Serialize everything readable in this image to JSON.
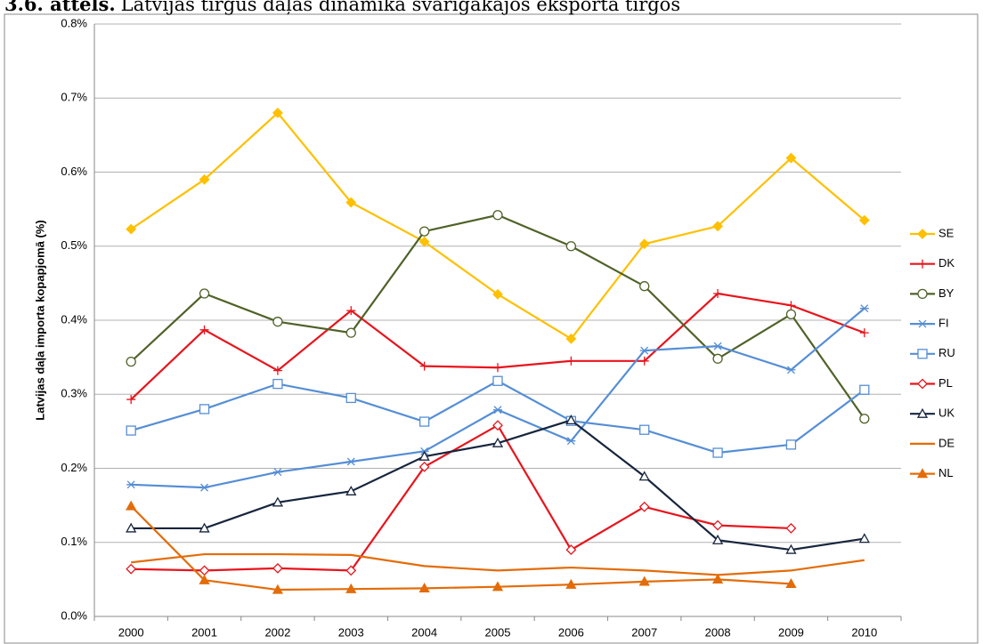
{
  "chart_data": {
    "type": "line",
    "title_label": "3.6. attēls.",
    "title": "Latvijas tirgus daļas dinamika svarīgākajos eksporta tirgos",
    "ylabel": "Latvijas daļa importa kopapjomā (%)",
    "categories": [
      "2000",
      "2001",
      "2002",
      "2003",
      "2004",
      "2005",
      "2006",
      "2007",
      "2008",
      "2009",
      "2010"
    ],
    "ylim": [
      0,
      0.8
    ],
    "yticks": [
      {
        "value": 0,
        "label": "0.0%"
      },
      {
        "value": 0.1,
        "label": "0.1%"
      },
      {
        "value": 0.2,
        "label": "0.2%"
      },
      {
        "value": 0.3,
        "label": "0.3%"
      },
      {
        "value": 0.4,
        "label": "0.4%"
      },
      {
        "value": 0.5,
        "label": "0.5%"
      },
      {
        "value": 0.6,
        "label": "0.6%"
      },
      {
        "value": 0.7,
        "label": "0.7%"
      },
      {
        "value": 0.8,
        "label": "0.8%"
      }
    ],
    "grid": true,
    "legend": "right",
    "series": [
      {
        "name": "SE",
        "color": "#ffc000",
        "marker": "diamond-filled",
        "values": [
          0.523,
          0.59,
          0.68,
          0.559,
          0.506,
          0.435,
          0.375,
          0.503,
          0.527,
          0.619,
          0.535
        ]
      },
      {
        "name": "DK",
        "color": "#e8141c",
        "marker": "plus",
        "values": [
          0.293,
          0.387,
          0.332,
          0.413,
          0.338,
          0.336,
          0.345,
          0.345,
          0.436,
          0.42,
          0.383
        ]
      },
      {
        "name": "BY",
        "color": "#4f6228",
        "marker": "circle-open",
        "values": [
          0.344,
          0.436,
          0.398,
          0.383,
          0.52,
          0.542,
          0.5,
          0.446,
          0.348,
          0.408,
          0.267
        ]
      },
      {
        "name": "FI",
        "color": "#558ed5",
        "marker": "asterisk",
        "values": [
          0.178,
          0.174,
          0.195,
          0.209,
          0.223,
          0.279,
          0.237,
          0.359,
          0.365,
          0.333,
          0.416
        ]
      },
      {
        "name": "RU",
        "color": "#558ed5",
        "marker": "square-open",
        "values": [
          0.251,
          0.28,
          0.314,
          0.295,
          0.263,
          0.318,
          0.264,
          0.252,
          0.221,
          0.232,
          0.306
        ]
      },
      {
        "name": "PL",
        "color": "#e8141c",
        "marker": "diamond-open",
        "values": [
          0.064,
          0.062,
          0.065,
          0.062,
          0.202,
          0.258,
          0.09,
          0.148,
          0.123,
          0.119,
          null
        ]
      },
      {
        "name": "UK",
        "color": "#17253d",
        "marker": "triangle-open",
        "values": [
          0.119,
          0.119,
          0.154,
          0.169,
          0.216,
          0.234,
          0.265,
          0.189,
          0.103,
          0.09,
          0.105
        ]
      },
      {
        "name": "DE",
        "color": "#e36c09",
        "marker": "none",
        "values": [
          0.073,
          0.084,
          0.084,
          0.083,
          0.068,
          0.062,
          0.066,
          0.062,
          0.056,
          0.062,
          0.076
        ]
      },
      {
        "name": "NL",
        "color": "#e36c09",
        "marker": "triangle-filled",
        "values": [
          0.149,
          0.049,
          0.036,
          0.037,
          0.038,
          0.04,
          0.043,
          0.047,
          0.05,
          0.044,
          null
        ]
      }
    ]
  }
}
